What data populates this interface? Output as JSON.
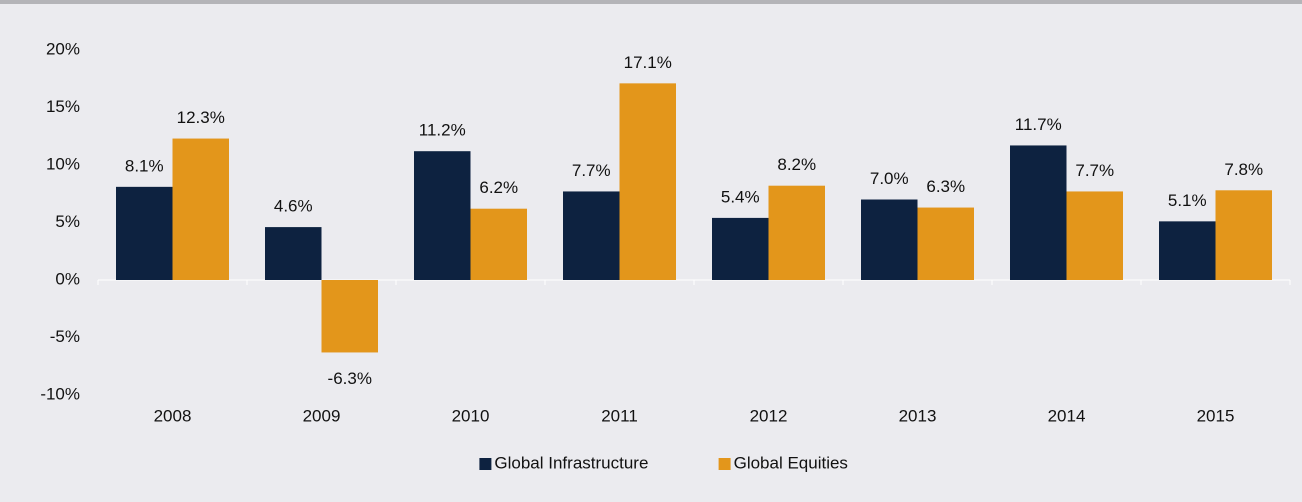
{
  "chart_data": {
    "type": "bar",
    "categories": [
      "2008",
      "2009",
      "2010",
      "2011",
      "2012",
      "2013",
      "2014",
      "2015"
    ],
    "series": [
      {
        "name": "Global Infrastructure",
        "color": "#0d2240",
        "values": [
          8.1,
          4.6,
          11.2,
          7.7,
          5.4,
          7.0,
          11.7,
          5.1
        ],
        "value_labels": [
          "8.1%",
          "4.6%",
          "11.2%",
          "7.7%",
          "5.4%",
          "7.0%",
          "11.7%",
          "5.1%"
        ]
      },
      {
        "name": "Global Equities",
        "color": "#e3961b",
        "values": [
          12.3,
          -6.3,
          6.2,
          17.1,
          8.2,
          6.3,
          7.7,
          7.8
        ],
        "value_labels": [
          "12.3%",
          "-6.3%",
          "6.2%",
          "17.1%",
          "8.2%",
          "6.3%",
          "7.7%",
          "7.8%"
        ]
      }
    ],
    "ylim": [
      -10,
      20
    ],
    "yticks": [
      {
        "value": -10,
        "label": "-10%"
      },
      {
        "value": -5,
        "label": "-5%"
      },
      {
        "value": 0,
        "label": "0%"
      },
      {
        "value": 5,
        "label": "5%"
      },
      {
        "value": 10,
        "label": "10%"
      },
      {
        "value": 15,
        "label": "15%"
      },
      {
        "value": 20,
        "label": "20%"
      }
    ],
    "legend": "bottom"
  }
}
